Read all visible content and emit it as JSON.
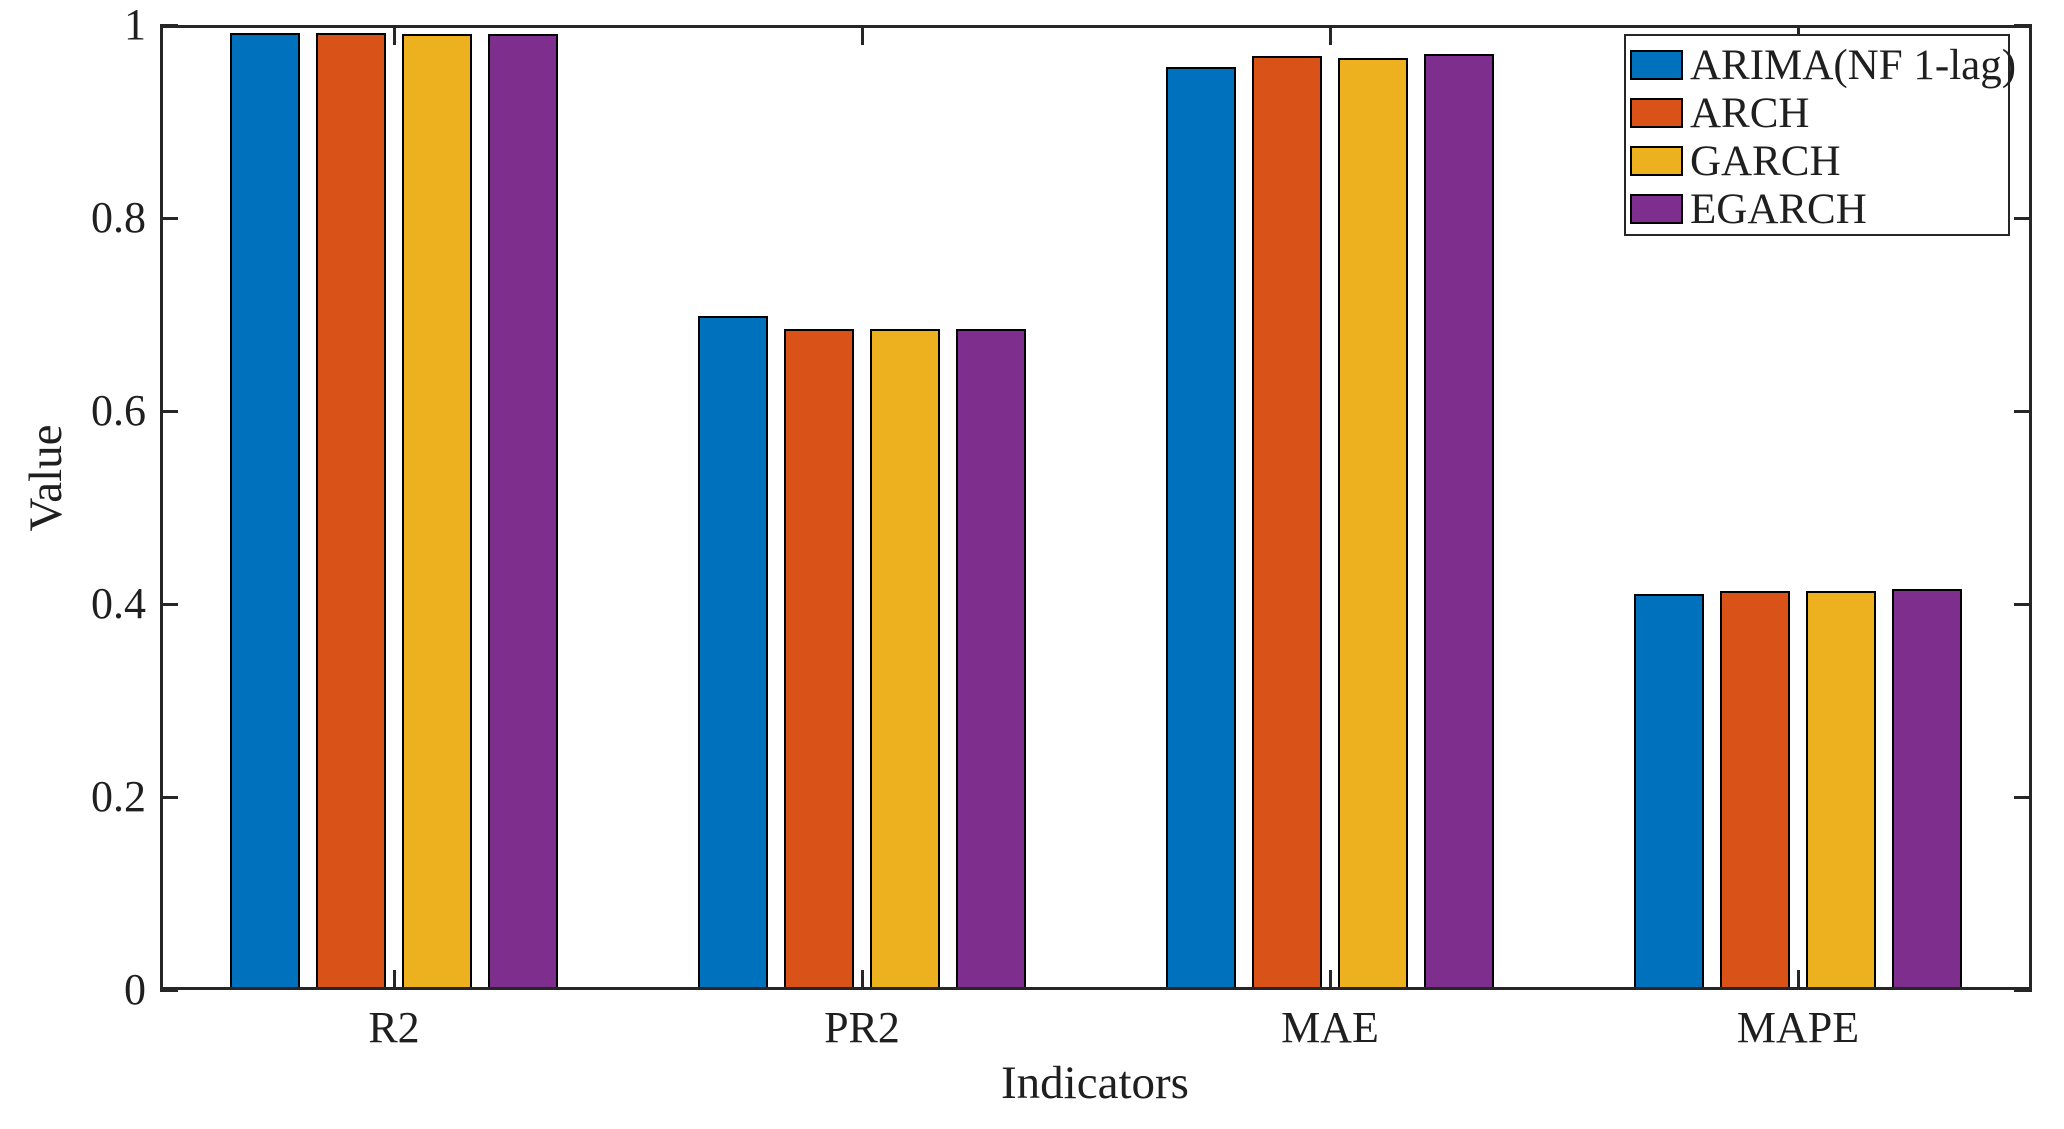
{
  "figure": {
    "background": "#ffffff",
    "axis_color": "#262626",
    "bar_edge_color": "#000000",
    "text_color": "#1f1f1f"
  },
  "chart_data": {
    "type": "bar",
    "title": "",
    "categories": [
      "R2",
      "PR2",
      "MAE",
      "MAPE"
    ],
    "series": [
      {
        "name": "ARIMA(NF 1-lag)",
        "color": "#0072BD",
        "values": [
          0.992,
          0.698,
          0.957,
          0.41
        ]
      },
      {
        "name": "ARCH",
        "color": "#D95319",
        "values": [
          0.992,
          0.685,
          0.968,
          0.414
        ]
      },
      {
        "name": "GARCH",
        "color": "#EDB120",
        "values": [
          0.991,
          0.685,
          0.966,
          0.414
        ]
      },
      {
        "name": "EGARCH",
        "color": "#7E2F8E",
        "values": [
          0.991,
          0.685,
          0.97,
          0.416
        ]
      }
    ],
    "xlabel": "Indicators",
    "ylabel": "Value",
    "ylim": [
      0,
      1
    ],
    "yticks": [
      0,
      0.2,
      0.4,
      0.6,
      0.8,
      1
    ],
    "ytick_labels": [
      "0",
      "0.2",
      "0.4",
      "0.6",
      "0.8",
      "1"
    ],
    "grid": false,
    "legend": {
      "position": "northeast",
      "entries": [
        "ARIMA(NF 1-lag)",
        "ARCH",
        "GARCH",
        "EGARCH"
      ]
    }
  }
}
